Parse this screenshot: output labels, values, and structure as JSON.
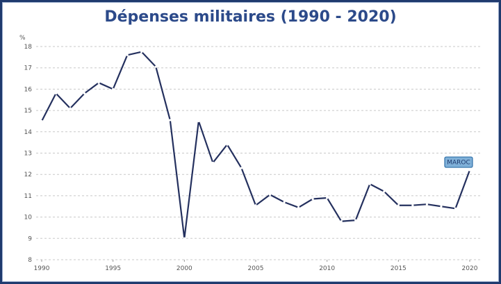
{
  "chart_data": {
    "type": "line",
    "title": "Dépenses militaires (1990 - 2020)",
    "ylabel": "%",
    "xlabel": "",
    "xlim": [
      1990,
      2020
    ],
    "ylim": [
      8,
      18
    ],
    "x_ticks": [
      1990,
      1995,
      2000,
      2005,
      2010,
      2015,
      2020
    ],
    "y_ticks": [
      8,
      9,
      10,
      11,
      12,
      13,
      14,
      15,
      16,
      17,
      18
    ],
    "grid": "horizontal dashed",
    "series": [
      {
        "name": "MAROC",
        "color": "#24305e",
        "x": [
          1990,
          1991,
          1992,
          1993,
          1994,
          1995,
          1996,
          1997,
          1998,
          1999,
          2000,
          2001,
          2002,
          2003,
          2004,
          2005,
          2006,
          2007,
          2008,
          2009,
          2010,
          2011,
          2012,
          2013,
          2014,
          2015,
          2016,
          2017,
          2018,
          2019,
          2020
        ],
        "values": [
          14.5,
          15.8,
          15.1,
          15.8,
          16.3,
          16.0,
          17.6,
          17.75,
          17.05,
          14.55,
          9.0,
          14.5,
          12.55,
          13.4,
          12.3,
          10.55,
          11.05,
          10.7,
          10.45,
          10.85,
          10.9,
          9.8,
          9.85,
          11.55,
          11.2,
          10.55,
          10.55,
          10.6,
          10.5,
          10.4,
          12.2
        ]
      }
    ]
  }
}
